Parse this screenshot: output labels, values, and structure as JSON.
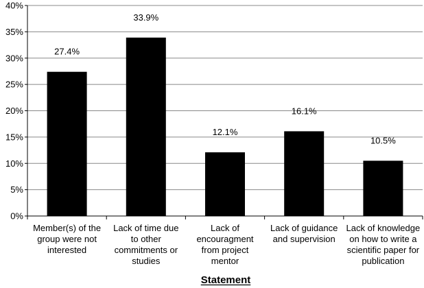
{
  "chart_data": {
    "type": "bar",
    "categories": [
      [
        "Member(s) of the",
        "group were not",
        "interested"
      ],
      [
        "Lack of time due",
        "to other",
        "commitments or",
        "studies"
      ],
      [
        "Lack of",
        "encouragment",
        "from project",
        "mentor"
      ],
      [
        "Lack of guidance",
        "and supervision"
      ],
      [
        "Lack of knowledge",
        "on how to write a",
        "scientific paper for",
        "publication"
      ]
    ],
    "values": [
      27.4,
      33.9,
      12.1,
      16.1,
      10.5
    ],
    "data_labels": [
      "27.4%",
      "33.9%",
      "12.1%",
      "16.1%",
      "10.5%"
    ],
    "title": "",
    "xlabel": "Statement",
    "ylabel": "",
    "ylim": [
      0,
      40
    ],
    "yticks": [
      0,
      5,
      10,
      15,
      20,
      25,
      30,
      35,
      40
    ],
    "ytick_labels": [
      "0%",
      "5%",
      "10%",
      "15%",
      "20%",
      "25%",
      "30%",
      "35%",
      "40%"
    ],
    "grid": true,
    "legend": "none",
    "bar_color": "#000000",
    "grid_color": "#888888"
  }
}
